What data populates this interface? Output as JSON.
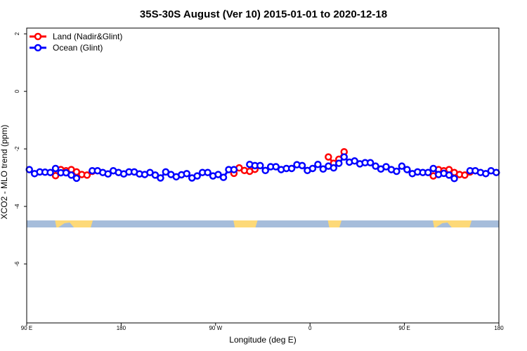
{
  "chart_data": {
    "type": "line",
    "title": "35S-30S August (Ver 10)   2015-01-01 to 2020-12-18",
    "xlabel": "Longitude (deg E)",
    "ylabel": "XCO2 - MLO trend (ppm)",
    "xlim": [
      90,
      540
    ],
    "ylim": [
      -8.05,
      2.2
    ],
    "x_ticks": [
      90,
      180,
      270,
      360,
      450,
      540
    ],
    "x_tick_labels": [
      "90 E",
      "180",
      "90 W",
      "0",
      "90 E",
      "180"
    ],
    "y_ticks": [
      2,
      0,
      -2,
      -4,
      -6
    ],
    "y_tick_labels": [
      "2",
      "0",
      "-2",
      "-4",
      "-6"
    ],
    "grid": false,
    "legend_position": "top-left",
    "x_start": 92.5,
    "x_step": 5,
    "series": [
      {
        "name": "Land (Nadir&Glint)",
        "color": "#ff0000",
        "values": [
          null,
          null,
          null,
          null,
          null,
          -2.93,
          -2.72,
          -2.76,
          -2.72,
          -2.8,
          -2.89,
          -2.91,
          -2.78,
          null,
          null,
          null,
          null,
          null,
          null,
          null,
          null,
          null,
          null,
          null,
          null,
          null,
          null,
          null,
          null,
          null,
          null,
          null,
          null,
          null,
          null,
          null,
          null,
          null,
          null,
          -2.85,
          -2.66,
          -2.75,
          -2.78,
          -2.71,
          null,
          null,
          null,
          null,
          null,
          null,
          null,
          null,
          null,
          null,
          null,
          null,
          null,
          -2.28,
          -2.5,
          -2.36,
          -2.1,
          null,
          null,
          null,
          null,
          null,
          null,
          null,
          null,
          null,
          null,
          null,
          null,
          null,
          null,
          null,
          null,
          -2.94,
          -2.72,
          -2.76,
          -2.72,
          -2.82,
          -2.89,
          -2.91,
          -2.8,
          null,
          null,
          null,
          null,
          null
        ]
      },
      {
        "name": "Ocean (Glint)",
        "color": "#0000ff",
        "values": [
          -2.72,
          -2.86,
          -2.8,
          -2.81,
          -2.82,
          -2.68,
          -2.83,
          -2.83,
          -2.91,
          -3.02,
          null,
          null,
          -2.76,
          -2.76,
          -2.82,
          -2.87,
          -2.76,
          -2.82,
          -2.87,
          -2.8,
          -2.8,
          -2.87,
          -2.89,
          -2.82,
          -2.91,
          -3.01,
          -2.8,
          -2.89,
          -2.97,
          -2.9,
          -2.86,
          -3.01,
          -2.94,
          -2.82,
          -2.82,
          -2.94,
          -2.89,
          -2.99,
          -2.72,
          -2.72,
          null,
          null,
          -2.54,
          -2.58,
          -2.58,
          -2.75,
          -2.62,
          -2.62,
          -2.72,
          -2.68,
          -2.68,
          -2.55,
          -2.58,
          -2.75,
          -2.68,
          -2.54,
          -2.7,
          -2.6,
          -2.66,
          -2.5,
          -2.28,
          -2.46,
          -2.42,
          -2.52,
          -2.48,
          -2.48,
          -2.6,
          -2.7,
          -2.62,
          -2.72,
          -2.78,
          -2.6,
          -2.72,
          -2.86,
          -2.8,
          -2.82,
          -2.82,
          -2.68,
          -2.89,
          -2.85,
          -2.91,
          -3.03,
          null,
          null,
          -2.76,
          -2.76,
          -2.82,
          -2.86,
          -2.76,
          -2.82
        ]
      }
    ],
    "land_mask_colors": {
      "ocean": "#a6bddb",
      "land": "#fdd978"
    }
  }
}
